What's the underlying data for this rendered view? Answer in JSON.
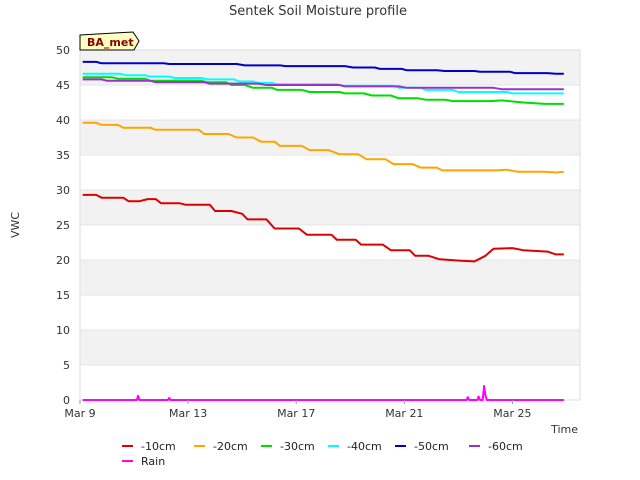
{
  "chart_data": {
    "type": "line",
    "title": "Sentek Soil Moisture profile",
    "xlabel": "Time",
    "ylabel": "VWC",
    "station_badge": "BA_met",
    "xlim": [
      0,
      18.5
    ],
    "ylim": [
      0,
      50
    ],
    "x_ticks": [
      {
        "x": 0,
        "label": "Mar 9"
      },
      {
        "x": 4,
        "label": "Mar 13"
      },
      {
        "x": 8,
        "label": "Mar 17"
      },
      {
        "x": 12,
        "label": "Mar 21"
      },
      {
        "x": 16,
        "label": "Mar 25"
      }
    ],
    "y_ticks": [
      0,
      5,
      10,
      15,
      20,
      25,
      30,
      35,
      40,
      45,
      50
    ],
    "grid": true,
    "legend_position": "bottom",
    "series": [
      {
        "name": "-10cm",
        "color": "#dd0000",
        "points": [
          [
            0.1,
            29.3
          ],
          [
            0.6,
            29.3
          ],
          [
            0.8,
            28.9
          ],
          [
            1.6,
            28.9
          ],
          [
            1.8,
            28.4
          ],
          [
            2.2,
            28.4
          ],
          [
            2.5,
            28.7
          ],
          [
            2.8,
            28.7
          ],
          [
            3.0,
            28.1
          ],
          [
            3.7,
            28.1
          ],
          [
            3.9,
            27.9
          ],
          [
            4.8,
            27.9
          ],
          [
            5.0,
            27.0
          ],
          [
            5.6,
            27.0
          ],
          [
            6.0,
            26.6
          ],
          [
            6.2,
            25.8
          ],
          [
            6.9,
            25.8
          ],
          [
            7.2,
            24.5
          ],
          [
            8.1,
            24.5
          ],
          [
            8.4,
            23.6
          ],
          [
            9.3,
            23.6
          ],
          [
            9.5,
            22.9
          ],
          [
            10.2,
            22.9
          ],
          [
            10.4,
            22.2
          ],
          [
            11.2,
            22.2
          ],
          [
            11.5,
            21.4
          ],
          [
            12.2,
            21.4
          ],
          [
            12.4,
            20.6
          ],
          [
            12.9,
            20.6
          ],
          [
            13.3,
            20.1
          ],
          [
            14.1,
            19.9
          ],
          [
            14.6,
            19.8
          ],
          [
            15.0,
            20.6
          ],
          [
            15.3,
            21.6
          ],
          [
            16.0,
            21.7
          ],
          [
            16.4,
            21.4
          ],
          [
            17.3,
            21.2
          ],
          [
            17.6,
            20.8
          ],
          [
            17.9,
            20.8
          ]
        ]
      },
      {
        "name": "-20cm",
        "color": "#ffa500",
        "points": [
          [
            0.1,
            39.6
          ],
          [
            0.6,
            39.6
          ],
          [
            0.8,
            39.3
          ],
          [
            1.4,
            39.3
          ],
          [
            1.6,
            38.9
          ],
          [
            2.6,
            38.9
          ],
          [
            2.8,
            38.6
          ],
          [
            4.4,
            38.6
          ],
          [
            4.6,
            38.0
          ],
          [
            5.5,
            38.0
          ],
          [
            5.8,
            37.5
          ],
          [
            6.4,
            37.5
          ],
          [
            6.7,
            36.9
          ],
          [
            7.2,
            36.9
          ],
          [
            7.4,
            36.3
          ],
          [
            8.2,
            36.3
          ],
          [
            8.5,
            35.7
          ],
          [
            9.2,
            35.7
          ],
          [
            9.6,
            35.1
          ],
          [
            10.3,
            35.1
          ],
          [
            10.6,
            34.4
          ],
          [
            11.3,
            34.4
          ],
          [
            11.6,
            33.7
          ],
          [
            12.3,
            33.7
          ],
          [
            12.6,
            33.2
          ],
          [
            13.2,
            33.2
          ],
          [
            13.4,
            32.8
          ],
          [
            15.4,
            32.8
          ],
          [
            15.8,
            32.9
          ],
          [
            16.2,
            32.6
          ],
          [
            17.2,
            32.6
          ],
          [
            17.6,
            32.5
          ],
          [
            17.9,
            32.6
          ]
        ]
      },
      {
        "name": "-30cm",
        "color": "#00dd00",
        "points": [
          [
            0.1,
            46.1
          ],
          [
            1.2,
            46.1
          ],
          [
            1.4,
            45.9
          ],
          [
            2.4,
            45.9
          ],
          [
            2.6,
            45.6
          ],
          [
            4.5,
            45.6
          ],
          [
            4.7,
            45.4
          ],
          [
            5.4,
            45.4
          ],
          [
            5.6,
            45.0
          ],
          [
            6.1,
            45.0
          ],
          [
            6.4,
            44.6
          ],
          [
            7.1,
            44.6
          ],
          [
            7.3,
            44.3
          ],
          [
            8.2,
            44.3
          ],
          [
            8.5,
            44.0
          ],
          [
            9.6,
            44.0
          ],
          [
            9.8,
            43.8
          ],
          [
            10.5,
            43.8
          ],
          [
            10.8,
            43.5
          ],
          [
            11.5,
            43.5
          ],
          [
            11.8,
            43.1
          ],
          [
            12.5,
            43.1
          ],
          [
            12.8,
            42.9
          ],
          [
            13.5,
            42.9
          ],
          [
            13.8,
            42.7
          ],
          [
            15.2,
            42.7
          ],
          [
            15.6,
            42.8
          ],
          [
            16.4,
            42.5
          ],
          [
            17.2,
            42.3
          ],
          [
            17.9,
            42.3
          ]
        ]
      },
      {
        "name": "-40cm",
        "color": "#00ffff",
        "points": [
          [
            0.1,
            46.6
          ],
          [
            1.5,
            46.6
          ],
          [
            1.7,
            46.4
          ],
          [
            2.4,
            46.4
          ],
          [
            2.6,
            46.2
          ],
          [
            3.3,
            46.2
          ],
          [
            3.5,
            46.0
          ],
          [
            4.5,
            46.0
          ],
          [
            4.7,
            45.8
          ],
          [
            5.7,
            45.8
          ],
          [
            5.9,
            45.5
          ],
          [
            6.4,
            45.5
          ],
          [
            6.6,
            45.3
          ],
          [
            7.1,
            45.3
          ],
          [
            7.3,
            45.1
          ],
          [
            9.5,
            45.1
          ],
          [
            9.7,
            44.9
          ],
          [
            11.6,
            44.9
          ],
          [
            11.8,
            44.6
          ],
          [
            12.6,
            44.6
          ],
          [
            12.8,
            44.3
          ],
          [
            13.8,
            44.3
          ],
          [
            14.0,
            44.0
          ],
          [
            15.8,
            44.0
          ],
          [
            16.0,
            43.8
          ],
          [
            17.9,
            43.8
          ]
        ]
      },
      {
        "name": "-50cm",
        "color": "#0000cc",
        "points": [
          [
            0.1,
            48.3
          ],
          [
            0.6,
            48.3
          ],
          [
            0.8,
            48.1
          ],
          [
            3.1,
            48.1
          ],
          [
            3.3,
            48.0
          ],
          [
            5.8,
            48.0
          ],
          [
            6.1,
            47.8
          ],
          [
            7.4,
            47.8
          ],
          [
            7.6,
            47.7
          ],
          [
            9.8,
            47.7
          ],
          [
            10.1,
            47.5
          ],
          [
            10.9,
            47.5
          ],
          [
            11.1,
            47.3
          ],
          [
            11.9,
            47.3
          ],
          [
            12.1,
            47.1
          ],
          [
            13.2,
            47.1
          ],
          [
            13.5,
            47.0
          ],
          [
            14.6,
            47.0
          ],
          [
            14.8,
            46.9
          ],
          [
            15.9,
            46.9
          ],
          [
            16.1,
            46.7
          ],
          [
            17.3,
            46.7
          ],
          [
            17.6,
            46.6
          ],
          [
            17.9,
            46.6
          ]
        ]
      },
      {
        "name": "-60cm",
        "color": "#9932cc",
        "points": [
          [
            0.1,
            45.8
          ],
          [
            0.8,
            45.8
          ],
          [
            1.0,
            45.6
          ],
          [
            2.6,
            45.6
          ],
          [
            2.8,
            45.4
          ],
          [
            4.6,
            45.4
          ],
          [
            4.8,
            45.2
          ],
          [
            6.6,
            45.2
          ],
          [
            6.9,
            45.0
          ],
          [
            9.6,
            45.0
          ],
          [
            9.8,
            44.8
          ],
          [
            11.8,
            44.8
          ],
          [
            12.1,
            44.6
          ],
          [
            15.3,
            44.6
          ],
          [
            15.6,
            44.4
          ],
          [
            17.9,
            44.4
          ]
        ]
      },
      {
        "name": "Rain",
        "color": "#ff00ff",
        "points": [
          [
            0.1,
            0
          ],
          [
            2.1,
            0
          ],
          [
            2.15,
            0.6
          ],
          [
            2.2,
            0
          ],
          [
            3.25,
            0
          ],
          [
            3.3,
            0.3
          ],
          [
            3.35,
            0
          ],
          [
            14.3,
            0
          ],
          [
            14.35,
            0.4
          ],
          [
            14.4,
            0
          ],
          [
            14.7,
            0
          ],
          [
            14.75,
            0.5
          ],
          [
            14.8,
            0
          ],
          [
            14.9,
            0
          ],
          [
            14.95,
            2.0
          ],
          [
            15.0,
            0.7
          ],
          [
            15.05,
            0
          ],
          [
            17.9,
            0
          ]
        ]
      }
    ]
  }
}
